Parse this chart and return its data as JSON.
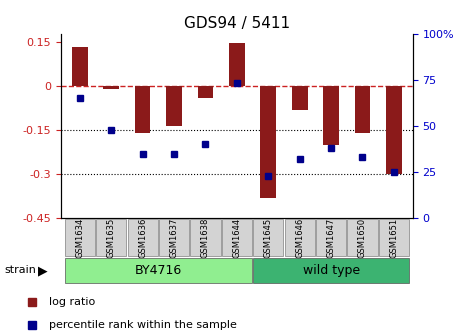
{
  "title": "GDS94 / 5411",
  "samples": [
    "GSM1634",
    "GSM1635",
    "GSM1636",
    "GSM1637",
    "GSM1638",
    "GSM1644",
    "GSM1645",
    "GSM1646",
    "GSM1647",
    "GSM1650",
    "GSM1651"
  ],
  "log_ratio": [
    0.135,
    -0.01,
    -0.16,
    -0.135,
    -0.04,
    0.148,
    -0.38,
    -0.08,
    -0.2,
    -0.16,
    -0.3
  ],
  "percentile": [
    65,
    48,
    35,
    35,
    40,
    73,
    23,
    32,
    38,
    33,
    25
  ],
  "bar_color": "#8B1A1A",
  "dot_color": "#00008B",
  "by4716_samples": [
    "GSM1634",
    "GSM1635",
    "GSM1636",
    "GSM1637",
    "GSM1638",
    "GSM1644"
  ],
  "wildtype_samples": [
    "GSM1645",
    "GSM1646",
    "GSM1647",
    "GSM1650",
    "GSM1651"
  ],
  "by4716_label": "BY4716",
  "wildtype_label": "wild type",
  "strain_label": "strain",
  "ylim_left": [
    -0.45,
    0.18
  ],
  "ylim_right": [
    0,
    100
  ],
  "yticks_left": [
    0.15,
    0,
    -0.15,
    -0.3,
    -0.45
  ],
  "ytick_labels_left": [
    "0.15",
    "0",
    "-0.15",
    "-0.3",
    "-0.45"
  ],
  "yticks_right": [
    100,
    75,
    50,
    25,
    0
  ],
  "ytick_labels_right": [
    "100%",
    "75",
    "50",
    "25",
    "0"
  ],
  "legend_log_ratio": "log ratio",
  "legend_percentile": "percentile rank within the sample",
  "bg_color": "#ffffff",
  "plot_bg_color": "#ffffff",
  "dashed_line_color": "#cc2222",
  "strain_box_color_by4716": "#90EE90",
  "strain_box_color_wt": "#3CB371",
  "tick_label_color_left": "#cc2222",
  "tick_label_color_right": "#0000cc"
}
